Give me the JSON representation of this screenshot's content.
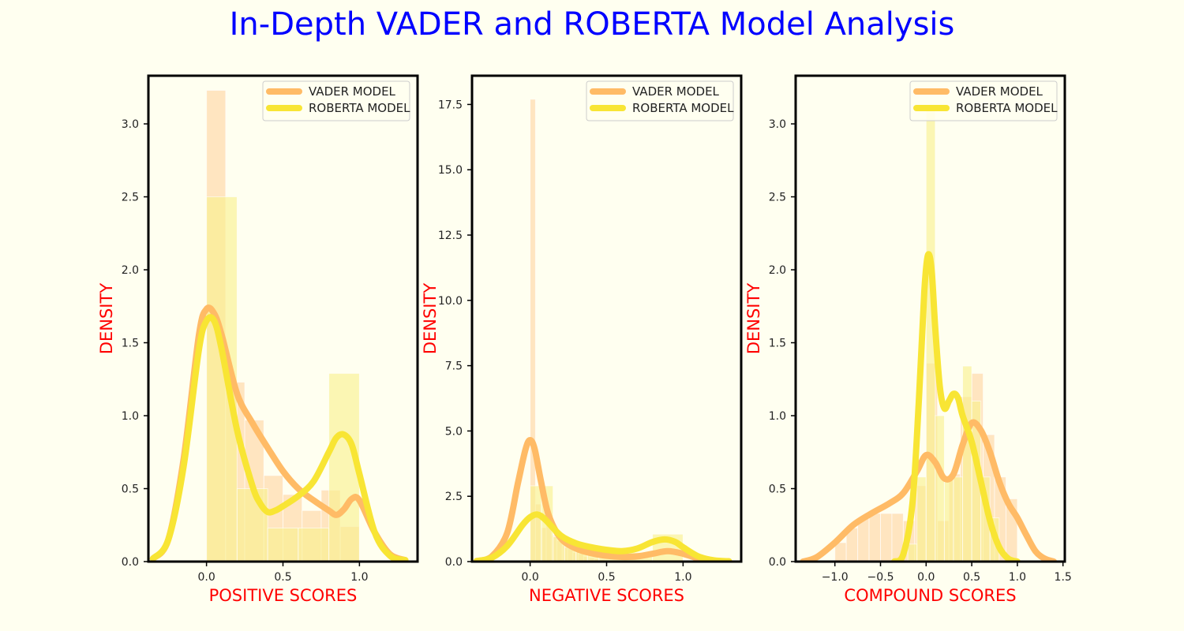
{
  "title": "In-Depth VADER and ROBERTA Model Analysis",
  "colors": {
    "background": "#fffff0",
    "title": "#0000ff",
    "axis_label": "#ff0000",
    "vader": "#ffbb66",
    "roberta": "#f8e534",
    "vader_hist": "#ffdcb0",
    "roberta_hist": "#f8f08a"
  },
  "legend": {
    "entries": [
      "VADER MODEL",
      "ROBERTA MODEL"
    ],
    "placement": "top-right"
  },
  "chart_data": [
    {
      "type": "histogram+kde",
      "xlabel": "POSITIVE SCORES",
      "ylabel": "DENSITY",
      "xlim": [
        -0.38,
        1.38
      ],
      "ylim": [
        0,
        3.33
      ],
      "xticks": [
        0.0,
        0.5,
        1.0
      ],
      "xtick_labels": [
        "0.0",
        "0.5",
        "1.0"
      ],
      "yticks": [
        0.0,
        0.5,
        1.0,
        1.5,
        2.0,
        2.5,
        3.0
      ],
      "ytick_labels": [
        "0.0",
        "0.5",
        "1.0",
        "1.5",
        "2.0",
        "2.5",
        "3.0"
      ],
      "series": [
        {
          "name": "VADER MODEL",
          "hist": {
            "edges": [
              0.0,
              0.125,
              0.25,
              0.375,
              0.5,
              0.625,
              0.75,
              0.875,
              1.0
            ],
            "values": [
              3.23,
              1.23,
              0.97,
              0.59,
              0.46,
              0.35,
              0.49,
              0.24
            ]
          },
          "kde": {
            "x": [
              -0.35,
              -0.25,
              -0.15,
              -0.05,
              0.0,
              0.05,
              0.1,
              0.2,
              0.3,
              0.4,
              0.5,
              0.6,
              0.7,
              0.8,
              0.85,
              0.9,
              0.95,
              1.0,
              1.1,
              1.2,
              1.3
            ],
            "y": [
              0.02,
              0.15,
              0.7,
              1.55,
              1.73,
              1.7,
              1.55,
              1.15,
              0.95,
              0.78,
              0.62,
              0.5,
              0.42,
              0.35,
              0.32,
              0.36,
              0.43,
              0.42,
              0.2,
              0.05,
              0.01
            ]
          }
        },
        {
          "name": "ROBERTA MODEL",
          "hist": {
            "edges": [
              0.0,
              0.2,
              0.4,
              0.6,
              0.8,
              1.0
            ],
            "values": [
              2.5,
              0.5,
              0.23,
              0.23,
              1.29
            ]
          },
          "kde": {
            "x": [
              -0.35,
              -0.25,
              -0.15,
              -0.05,
              0.0,
              0.05,
              0.1,
              0.2,
              0.3,
              0.35,
              0.4,
              0.45,
              0.5,
              0.6,
              0.7,
              0.8,
              0.85,
              0.9,
              0.95,
              1.0,
              1.1,
              1.2,
              1.3
            ],
            "y": [
              0.02,
              0.15,
              0.65,
              1.45,
              1.65,
              1.65,
              1.45,
              0.9,
              0.52,
              0.4,
              0.34,
              0.35,
              0.38,
              0.45,
              0.55,
              0.75,
              0.85,
              0.87,
              0.8,
              0.6,
              0.2,
              0.04,
              0.01
            ]
          }
        }
      ]
    },
    {
      "type": "histogram+kde",
      "xlabel": "NEGATIVE SCORES",
      "ylabel": "DENSITY",
      "xlim": [
        -0.38,
        1.38
      ],
      "ylim": [
        0,
        18.6
      ],
      "xticks": [
        0.0,
        0.5,
        1.0
      ],
      "xtick_labels": [
        "0.0",
        "0.5",
        "1.0"
      ],
      "yticks": [
        0.0,
        2.5,
        5.0,
        7.5,
        10.0,
        12.5,
        15.0,
        17.5
      ],
      "ytick_labels": [
        "0.0",
        "2.5",
        "5.0",
        "7.5",
        "10.0",
        "12.5",
        "15.0",
        "17.5"
      ],
      "series": [
        {
          "name": "VADER MODEL",
          "hist": {
            "edges": [
              0.0,
              0.035,
              0.07,
              0.105,
              0.14,
              0.175,
              0.21,
              0.245,
              0.28,
              0.315,
              0.35,
              0.385,
              0.42,
              0.455,
              0.49
            ],
            "values": [
              17.7,
              2.2,
              1.3,
              1.6,
              1.0,
              0.8,
              0.6,
              0.5,
              0.35,
              0.3,
              0.2,
              0.15,
              0.1,
              0.08
            ]
          },
          "kde": {
            "x": [
              -0.35,
              -0.25,
              -0.15,
              -0.08,
              -0.03,
              0.0,
              0.03,
              0.07,
              0.12,
              0.2,
              0.3,
              0.4,
              0.5,
              0.6,
              0.7,
              0.8,
              0.9,
              1.0,
              1.1,
              1.2,
              1.3
            ],
            "y": [
              0.02,
              0.2,
              1.1,
              3.0,
              4.3,
              4.65,
              4.3,
              3.1,
              1.8,
              0.9,
              0.5,
              0.32,
              0.22,
              0.18,
              0.2,
              0.3,
              0.4,
              0.3,
              0.12,
              0.03,
              0.01
            ]
          }
        },
        {
          "name": "ROBERTA MODEL",
          "hist": {
            "edges": [
              0.0,
              0.075,
              0.15,
              0.225,
              0.3,
              0.375,
              0.45,
              0.8,
              1.0
            ],
            "values": [
              2.9,
              2.9,
              0.95,
              0.55,
              0.45,
              0.4,
              0.35,
              1.05
            ]
          },
          "kde": {
            "x": [
              -0.35,
              -0.25,
              -0.15,
              -0.05,
              0.0,
              0.05,
              0.1,
              0.2,
              0.3,
              0.4,
              0.5,
              0.6,
              0.7,
              0.8,
              0.88,
              0.95,
              1.0,
              1.1,
              1.2,
              1.3
            ],
            "y": [
              0.02,
              0.15,
              0.6,
              1.4,
              1.7,
              1.8,
              1.6,
              1.0,
              0.7,
              0.55,
              0.45,
              0.4,
              0.5,
              0.75,
              0.85,
              0.75,
              0.55,
              0.2,
              0.05,
              0.01
            ]
          }
        }
      ]
    },
    {
      "type": "histogram+kde",
      "xlabel": "COMPOUND SCORES",
      "ylabel": "DENSITY",
      "xlim": [
        -1.43,
        1.52
      ],
      "ylim": [
        0,
        3.33
      ],
      "xticks": [
        -1.0,
        -0.5,
        0.0,
        0.5,
        1.0,
        1.5
      ],
      "xtick_labels": [
        "−1.0",
        "−0.5",
        "0.0",
        "0.5",
        "1.0",
        "1.5"
      ],
      "yticks": [
        0.0,
        0.5,
        1.0,
        1.5,
        2.0,
        2.5,
        3.0
      ],
      "ytick_labels": [
        "0.0",
        "0.5",
        "1.0",
        "1.5",
        "2.0",
        "2.5",
        "3.0"
      ],
      "series": [
        {
          "name": "VADER MODEL",
          "hist": {
            "edges": [
              -1.0,
              -0.875,
              -0.75,
              -0.625,
              -0.5,
              -0.375,
              -0.25,
              -0.125,
              0.0,
              0.125,
              0.25,
              0.375,
              0.5,
              0.625,
              0.75,
              0.875,
              1.0
            ],
            "values": [
              0.13,
              0.23,
              0.3,
              0.33,
              0.33,
              0.33,
              0.28,
              0.52,
              1.36,
              0.28,
              0.6,
              1.13,
              1.29,
              0.87,
              0.58,
              0.43
            ]
          },
          "kde": {
            "x": [
              -1.35,
              -1.2,
              -1.0,
              -0.8,
              -0.6,
              -0.4,
              -0.25,
              -0.1,
              0.0,
              0.1,
              0.2,
              0.3,
              0.4,
              0.5,
              0.6,
              0.7,
              0.8,
              0.9,
              1.0,
              1.1,
              1.2,
              1.3,
              1.4
            ],
            "y": [
              0.0,
              0.03,
              0.13,
              0.25,
              0.33,
              0.4,
              0.47,
              0.62,
              0.73,
              0.68,
              0.57,
              0.6,
              0.8,
              0.95,
              0.9,
              0.75,
              0.55,
              0.4,
              0.3,
              0.18,
              0.07,
              0.02,
              0.0
            ]
          }
        },
        {
          "name": "ROBERTA MODEL",
          "hist": {
            "edges": [
              -0.2,
              -0.1,
              0.0,
              0.1,
              0.2,
              0.3,
              0.4,
              0.5,
              0.6,
              0.7,
              0.8
            ],
            "values": [
              0.12,
              0.58,
              3.1,
              1.0,
              0.58,
              0.58,
              1.34,
              1.1,
              0.58,
              0.3
            ]
          },
          "kde": {
            "x": [
              -0.35,
              -0.25,
              -0.15,
              -0.08,
              -0.02,
              0.02,
              0.06,
              0.1,
              0.15,
              0.2,
              0.25,
              0.3,
              0.35,
              0.4,
              0.5,
              0.6,
              0.7,
              0.8,
              0.9,
              1.0
            ],
            "y": [
              0.0,
              0.05,
              0.4,
              1.1,
              1.85,
              2.1,
              2.0,
              1.6,
              1.2,
              1.05,
              1.1,
              1.15,
              1.12,
              1.0,
              0.82,
              0.55,
              0.28,
              0.1,
              0.02,
              0.0
            ]
          }
        }
      ]
    }
  ]
}
